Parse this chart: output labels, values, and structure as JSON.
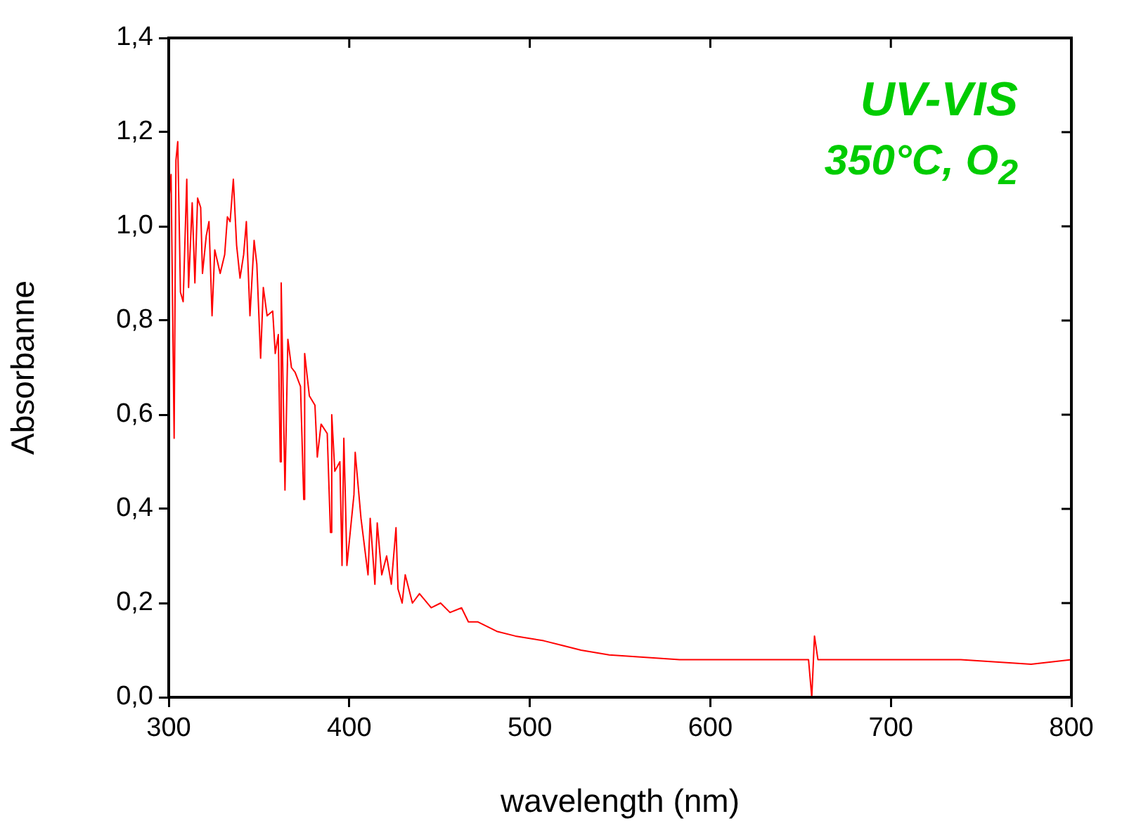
{
  "chart_data": {
    "type": "line",
    "xlabel": "wavelength (nm)",
    "ylabel": "Absorbanne",
    "annotations": [
      "UV-VIS",
      "350°C, O$_{2}$"
    ],
    "xlim": [
      300,
      800
    ],
    "ylim": [
      0,
      1.4
    ],
    "xticks": [
      300,
      400,
      500,
      600,
      700,
      800
    ],
    "yticks": [
      {
        "value": 0,
        "label": "0,0"
      },
      {
        "value": 0.2,
        "label": "0,2"
      },
      {
        "value": 0.4,
        "label": "0,4"
      },
      {
        "value": 0.6,
        "label": "0,6"
      },
      {
        "value": 0.8,
        "label": "0,8"
      },
      {
        "value": 1,
        "label": "1,0"
      },
      {
        "value": 1.2,
        "label": "1,2"
      },
      {
        "value": 1.4,
        "label": "1,4"
      }
    ],
    "grid": false,
    "marker": "none",
    "line_style": "solid",
    "legend": false,
    "series": [
      {
        "color": "#ff0000",
        "x": [
          300,
          301.3,
          303,
          304,
          305,
          306.5,
          308,
          310,
          311,
          313,
          314.5,
          316,
          317.7,
          318.7,
          320.8,
          322.3,
          324,
          325.5,
          328.5,
          331,
          332.5,
          334,
          335.8,
          337.6,
          339.5,
          341.5,
          343,
          345,
          347.3,
          348.8,
          350.9,
          352.4,
          354.5,
          357.6,
          359,
          360.7,
          361.8,
          362.3,
          364.4,
          366,
          368,
          370,
          373,
          374.8,
          375.3,
          377.9,
          381,
          382.3,
          384.4,
          387.8,
          389.6,
          390.3,
          392,
          394.8,
          396,
          397,
          398,
          398.7,
          402.6,
          403.3,
          406.5,
          410.4,
          411.6,
          414.2,
          415.5,
          418,
          420.7,
          423.3,
          425.9,
          427,
          429.3,
          431,
          435,
          438.9,
          445.4,
          450.6,
          455.8,
          462.2,
          466,
          471.3,
          481.7,
          492,
          507.7,
          518,
          528.4,
          544,
          583,
          622,
          654.4,
          656.2,
          657.7,
          659.6,
          699.8,
          738.7,
          777.7,
          800
        ],
        "values": [
          1.05,
          1.11,
          0.55,
          1.14,
          1.18,
          0.86,
          0.84,
          1.1,
          0.87,
          1.05,
          0.88,
          1.06,
          1.04,
          0.9,
          0.98,
          1.01,
          0.81,
          0.95,
          0.9,
          0.94,
          1.02,
          1.01,
          1.1,
          0.96,
          0.89,
          0.94,
          1.01,
          0.81,
          0.97,
          0.92,
          0.72,
          0.87,
          0.81,
          0.82,
          0.73,
          0.77,
          0.5,
          0.88,
          0.44,
          0.76,
          0.7,
          0.69,
          0.66,
          0.42,
          0.73,
          0.64,
          0.62,
          0.51,
          0.58,
          0.56,
          0.35,
          0.6,
          0.48,
          0.5,
          0.28,
          0.55,
          0.4,
          0.28,
          0.43,
          0.52,
          0.38,
          0.26,
          0.38,
          0.24,
          0.37,
          0.26,
          0.3,
          0.24,
          0.36,
          0.23,
          0.2,
          0.26,
          0.2,
          0.22,
          0.19,
          0.2,
          0.18,
          0.19,
          0.16,
          0.16,
          0.14,
          0.13,
          0.12,
          0.11,
          0.1,
          0.09,
          0.08,
          0.08,
          0.08,
          0,
          0.13,
          0.08,
          0.08,
          0.08,
          0.07,
          0.08
        ]
      }
    ]
  }
}
